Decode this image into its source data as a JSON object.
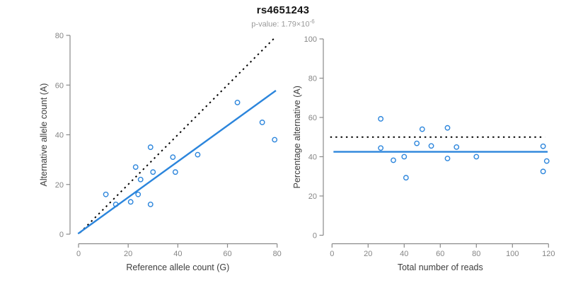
{
  "header": {
    "title": "rs4651243",
    "pvalue_text": "p-value: 1.79×10",
    "pvalue_exponent": "-6"
  },
  "colors": {
    "accent_blue": "#2b85dc",
    "identity_black": "#000000",
    "axis": "#8a8a8a",
    "tick_label": "#858585",
    "axis_label": "#3d3d3d",
    "title": "#151515",
    "subtitle": "#9a9a9a",
    "background": "#ffffff"
  },
  "chart_data": [
    {
      "id": "allele-count-scatter",
      "type": "scatter",
      "title": "",
      "xlabel": "Reference allele count (G)",
      "ylabel": "Alternative allele count (A)",
      "xlim": [
        0,
        80
      ],
      "ylim": [
        0,
        80
      ],
      "xticks": [
        0,
        20,
        40,
        60,
        80
      ],
      "yticks": [
        0,
        20,
        40,
        60,
        80
      ],
      "grid": false,
      "legend": "none",
      "points": [
        [
          11,
          16
        ],
        [
          15,
          12
        ],
        [
          21,
          13
        ],
        [
          23,
          27
        ],
        [
          24,
          16
        ],
        [
          25,
          22
        ],
        [
          29,
          12
        ],
        [
          29,
          35
        ],
        [
          30,
          25
        ],
        [
          38,
          31
        ],
        [
          39,
          25
        ],
        [
          48,
          32
        ],
        [
          64,
          53
        ],
        [
          74,
          45
        ],
        [
          79,
          38
        ]
      ],
      "lines": [
        {
          "name": "identity-line",
          "style": "dotted",
          "color": "#000000",
          "x1": 0.6,
          "y1": 0.6,
          "x2": 78.8,
          "y2": 78.8
        },
        {
          "name": "regression-line",
          "style": "solid",
          "color": "#2b85dc",
          "x1": -0.2,
          "y1": 0.2,
          "x2": 79.5,
          "y2": 57.8
        }
      ]
    },
    {
      "id": "percentage-scatter",
      "type": "scatter",
      "title": "",
      "xlabel": "Total number of reads",
      "ylabel": "Percentage alternative (A)",
      "xlim": [
        0,
        120
      ],
      "ylim": [
        0,
        100
      ],
      "xticks": [
        0,
        20,
        40,
        60,
        80,
        100,
        120
      ],
      "yticks": [
        0,
        20,
        40,
        60,
        80,
        100
      ],
      "grid": false,
      "legend": "none",
      "points": [
        [
          27,
          59.3
        ],
        [
          27,
          44.4
        ],
        [
          34,
          38.2
        ],
        [
          50,
          54.0
        ],
        [
          40,
          40.0
        ],
        [
          47,
          46.8
        ],
        [
          41,
          29.3
        ],
        [
          64,
          54.7
        ],
        [
          55,
          45.5
        ],
        [
          69,
          44.9
        ],
        [
          64,
          39.1
        ],
        [
          80,
          40.0
        ],
        [
          117,
          45.3
        ],
        [
          119,
          37.8
        ],
        [
          117,
          32.5
        ]
      ],
      "lines": [
        {
          "name": "expected-percentage-line",
          "style": "dotted",
          "color": "#000000",
          "x1": -1,
          "y1": 50,
          "x2": 118,
          "y2": 50
        },
        {
          "name": "mean-percentage-line",
          "style": "solid",
          "color": "#2b85dc",
          "x1": 0.8,
          "y1": 42.5,
          "x2": 119.5,
          "y2": 42.5
        }
      ]
    }
  ]
}
